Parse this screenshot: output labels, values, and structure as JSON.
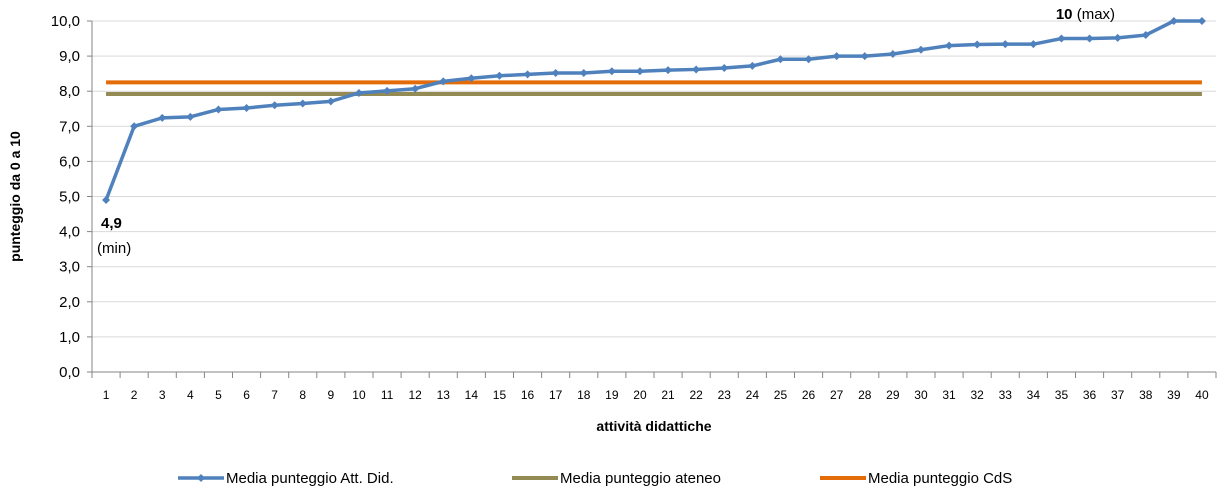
{
  "chart_data": {
    "type": "line",
    "xlabel": "attività didattiche",
    "ylabel": "punteggio da 0 a 10",
    "ylim": [
      0,
      10
    ],
    "y_ticks": [
      "0,0",
      "1,0",
      "2,0",
      "3,0",
      "4,0",
      "5,0",
      "6,0",
      "7,0",
      "8,0",
      "9,0",
      "10,0"
    ],
    "categories": [
      "1",
      "2",
      "3",
      "4",
      "5",
      "6",
      "7",
      "8",
      "9",
      "10",
      "11",
      "12",
      "13",
      "14",
      "15",
      "16",
      "17",
      "18",
      "19",
      "20",
      "21",
      "22",
      "23",
      "24",
      "25",
      "26",
      "27",
      "28",
      "29",
      "30",
      "31",
      "32",
      "33",
      "34",
      "35",
      "36",
      "37",
      "38",
      "39",
      "40"
    ],
    "grid": true,
    "legend_position": "bottom",
    "series": [
      {
        "name": "Media punteggio Att. Did.",
        "color": "#4f81bd",
        "marker": "diamond",
        "values": [
          4.9,
          7.0,
          7.24,
          7.27,
          7.48,
          7.52,
          7.6,
          7.65,
          7.71,
          7.95,
          8.01,
          8.07,
          8.28,
          8.37,
          8.44,
          8.48,
          8.52,
          8.52,
          8.57,
          8.57,
          8.6,
          8.62,
          8.66,
          8.72,
          8.91,
          8.91,
          9.0,
          9.0,
          9.06,
          9.18,
          9.3,
          9.33,
          9.34,
          9.34,
          9.5,
          9.5,
          9.52,
          9.6,
          10.0,
          10.0
        ]
      },
      {
        "name": "Media punteggio ateneo",
        "color": "#948a54",
        "constant": 7.92
      },
      {
        "name": "Media punteggio CdS",
        "color": "#e36c09",
        "constant": 8.25
      }
    ],
    "annotations": {
      "min_value": "4,9",
      "min_label": "(min)",
      "max_value": "10",
      "max_label": " (max)"
    }
  }
}
